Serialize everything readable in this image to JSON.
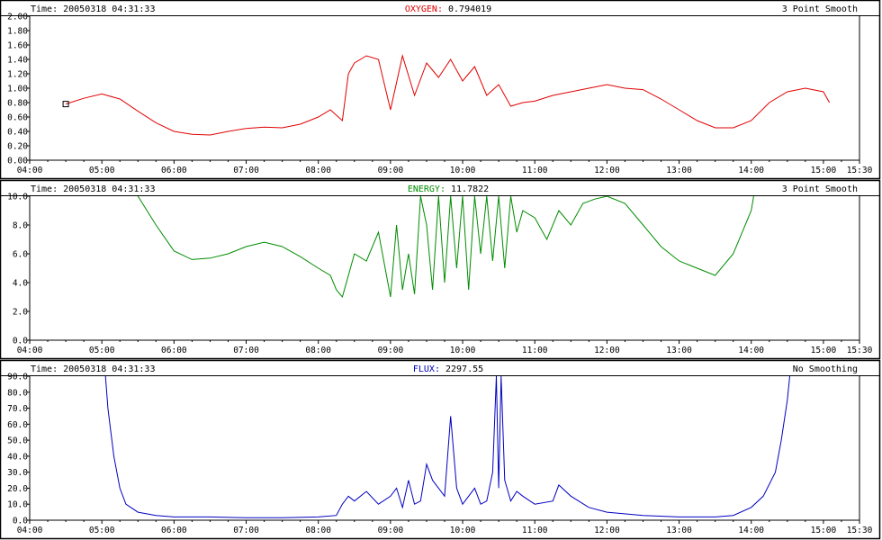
{
  "panels": [
    {
      "time_label": "Time: 20050318 04:31:33",
      "title": "OXYGEN:",
      "value": "0.794019",
      "smoothing": "3 Point Smooth",
      "color": "#e00000"
    },
    {
      "time_label": "Time: 20050318 04:31:33",
      "title": "ENERGY:",
      "value": "11.7822",
      "smoothing": "3 Point Smooth",
      "color": "#008c00"
    },
    {
      "time_label": "Time: 20050318 04:31:33",
      "title": "FLUX:",
      "value": "2297.55",
      "smoothing": "No Smoothing",
      "color": "#0000c0"
    }
  ],
  "chart_data": [
    {
      "type": "line",
      "series": [
        {
          "color": "#e00000",
          "x": [
            "04:30",
            "04:45",
            "05:00",
            "05:15",
            "05:30",
            "05:45",
            "06:00",
            "06:15",
            "06:30",
            "06:45",
            "07:00",
            "07:15",
            "07:30",
            "07:45",
            "08:00",
            "08:10",
            "08:20",
            "08:25",
            "08:30",
            "08:40",
            "08:50",
            "09:00",
            "09:10",
            "09:20",
            "09:30",
            "09:40",
            "09:50",
            "10:00",
            "10:10",
            "10:20",
            "10:30",
            "10:40",
            "10:50",
            "11:00",
            "11:15",
            "11:30",
            "11:45",
            "12:00",
            "12:15",
            "12:30",
            "12:45",
            "13:00",
            "13:15",
            "13:30",
            "13:45",
            "14:00",
            "14:15",
            "14:30",
            "14:45",
            "15:00",
            "15:05"
          ],
          "y": [
            0.78,
            0.86,
            0.92,
            0.85,
            0.68,
            0.52,
            0.4,
            0.36,
            0.35,
            0.4,
            0.44,
            0.46,
            0.45,
            0.5,
            0.6,
            0.7,
            0.55,
            1.2,
            1.35,
            1.45,
            1.4,
            0.7,
            1.45,
            0.9,
            1.35,
            1.15,
            1.4,
            1.1,
            1.3,
            0.9,
            1.05,
            0.75,
            0.8,
            0.82,
            0.9,
            0.95,
            1.0,
            1.05,
            1.0,
            0.98,
            0.85,
            0.7,
            0.55,
            0.45,
            0.45,
            0.55,
            0.8,
            0.95,
            1.0,
            0.95,
            0.8
          ]
        }
      ],
      "x_ticks": [
        "04:00",
        "05:00",
        "06:00",
        "07:00",
        "08:00",
        "09:00",
        "10:00",
        "11:00",
        "12:00",
        "13:00",
        "14:00",
        "15:00",
        "15:30"
      ],
      "y_ticks": [
        "0.00",
        "0.20",
        "0.40",
        "0.60",
        "0.80",
        "1.00",
        "1.20",
        "1.40",
        "1.60",
        "1.80",
        "2.00"
      ],
      "ylim": [
        0,
        2.0
      ],
      "xlim": [
        "04:00",
        "15:30"
      ],
      "grid": false
    },
    {
      "type": "line",
      "series": [
        {
          "color": "#008c00",
          "x": [
            "05:30",
            "05:45",
            "06:00",
            "06:15",
            "06:30",
            "06:45",
            "07:00",
            "07:15",
            "07:30",
            "07:45",
            "08:00",
            "08:10",
            "08:15",
            "08:20",
            "08:30",
            "08:40",
            "08:50",
            "09:00",
            "09:05",
            "09:10",
            "09:15",
            "09:20",
            "09:25",
            "09:30",
            "09:35",
            "09:40",
            "09:45",
            "09:50",
            "09:55",
            "10:00",
            "10:05",
            "10:10",
            "10:15",
            "10:20",
            "10:25",
            "10:30",
            "10:35",
            "10:40",
            "10:45",
            "10:50",
            "11:00",
            "11:10",
            "11:20",
            "11:30",
            "11:40",
            "11:50",
            "12:00",
            "12:15",
            "12:30",
            "12:45",
            "13:00",
            "13:15",
            "13:30",
            "13:45",
            "14:00",
            "14:02"
          ],
          "y": [
            10.0,
            8.0,
            6.2,
            5.6,
            5.7,
            6.0,
            6.5,
            6.8,
            6.5,
            5.8,
            5.0,
            4.5,
            3.5,
            3.0,
            6.0,
            5.5,
            7.5,
            3.0,
            8.0,
            3.5,
            6.0,
            3.2,
            10.0,
            8.0,
            3.5,
            10.0,
            4.0,
            10.0,
            5.0,
            10.0,
            3.5,
            10.0,
            6.0,
            10.0,
            5.5,
            10.0,
            5.0,
            10.0,
            7.5,
            9.0,
            8.5,
            7.0,
            9.0,
            8.0,
            9.5,
            9.8,
            10.0,
            9.5,
            8.0,
            6.5,
            5.5,
            5.0,
            4.5,
            6.0,
            9.0,
            10.0
          ]
        }
      ],
      "x_ticks": [
        "04:00",
        "05:00",
        "06:00",
        "07:00",
        "08:00",
        "09:00",
        "10:00",
        "11:00",
        "12:00",
        "13:00",
        "14:00",
        "15:00",
        "15:30"
      ],
      "y_ticks": [
        "0.0",
        "2.0",
        "4.0",
        "6.0",
        "8.0",
        "10.0"
      ],
      "ylim": [
        0,
        10.0
      ],
      "xlim": [
        "04:00",
        "15:30"
      ],
      "grid": false
    },
    {
      "type": "line",
      "series": [
        {
          "color": "#0000c0",
          "x": [
            "05:03",
            "05:05",
            "05:10",
            "05:15",
            "05:20",
            "05:30",
            "05:45",
            "06:00",
            "06:30",
            "07:00",
            "07:30",
            "08:00",
            "08:15",
            "08:20",
            "08:25",
            "08:30",
            "08:40",
            "08:50",
            "09:00",
            "09:05",
            "09:10",
            "09:15",
            "09:20",
            "09:25",
            "09:30",
            "09:35",
            "09:40",
            "09:45",
            "09:50",
            "09:55",
            "10:00",
            "10:05",
            "10:10",
            "10:15",
            "10:20",
            "10:25",
            "10:28",
            "10:30",
            "10:32",
            "10:35",
            "10:40",
            "10:45",
            "10:50",
            "11:00",
            "11:15",
            "11:20",
            "11:30",
            "11:45",
            "12:00",
            "12:30",
            "13:00",
            "13:30",
            "13:45",
            "14:00",
            "14:10",
            "14:20",
            "14:25",
            "14:30",
            "14:32"
          ],
          "y": [
            90,
            70,
            40,
            20,
            10,
            5,
            3,
            2,
            2,
            1.5,
            1.5,
            2,
            3,
            10,
            15,
            12,
            18,
            10,
            15,
            20,
            8,
            25,
            10,
            12,
            35,
            25,
            20,
            15,
            65,
            20,
            10,
            15,
            20,
            10,
            12,
            30,
            90,
            20,
            90,
            25,
            12,
            18,
            15,
            10,
            12,
            22,
            15,
            8,
            5,
            3,
            2,
            2,
            3,
            8,
            15,
            30,
            50,
            75,
            90
          ]
        }
      ],
      "x_ticks": [
        "04:00",
        "05:00",
        "06:00",
        "07:00",
        "08:00",
        "09:00",
        "10:00",
        "11:00",
        "12:00",
        "13:00",
        "14:00",
        "15:00",
        "15:30"
      ],
      "y_ticks": [
        "0.0",
        "10.0",
        "20.0",
        "30.0",
        "40.0",
        "50.0",
        "60.0",
        "70.0",
        "80.0",
        "90.0"
      ],
      "ylim": [
        0,
        90.0
      ],
      "xlim": [
        "04:00",
        "15:30"
      ],
      "grid": false
    }
  ]
}
